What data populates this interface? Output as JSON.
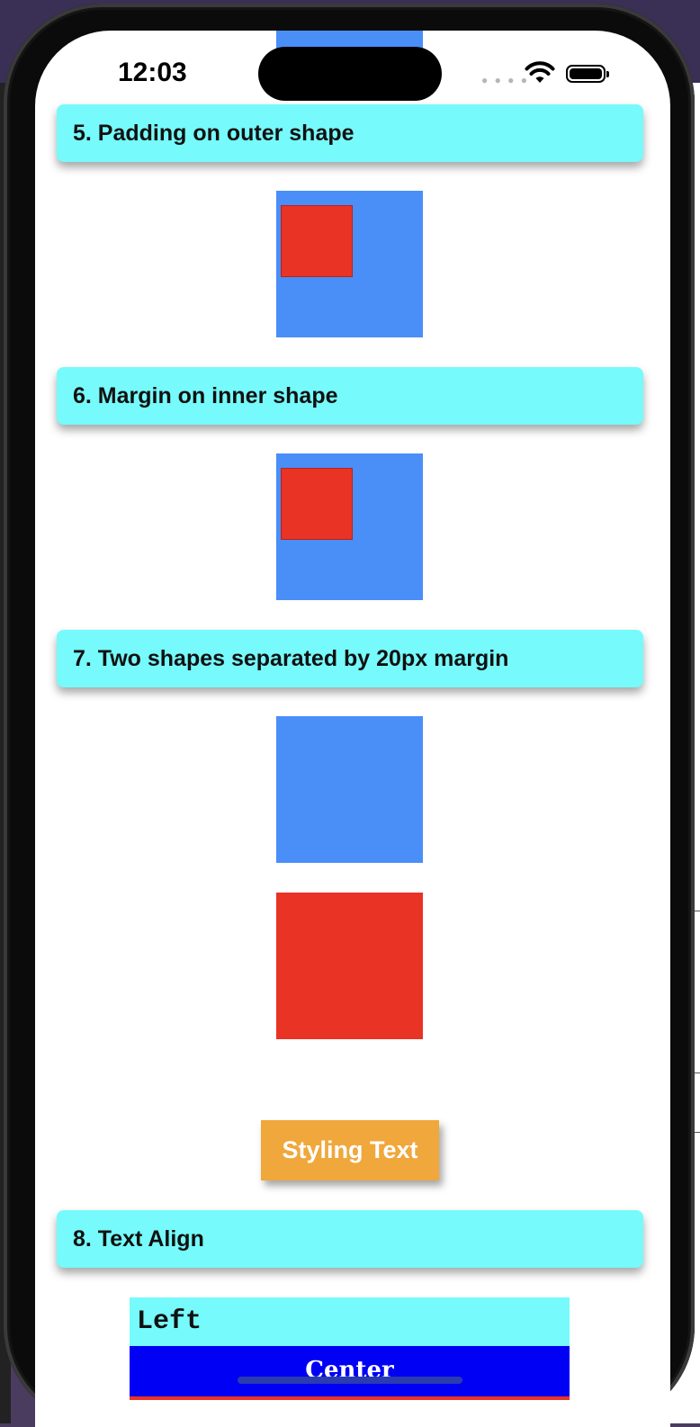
{
  "status_bar": {
    "time": "12:03",
    "signal_icon": "cellular-dots-icon",
    "wifi_icon": "wifi-icon",
    "battery_icon": "battery-icon"
  },
  "sections": [
    {
      "label": "5. Padding on outer shape"
    },
    {
      "label": "6. Margin on inner shape"
    },
    {
      "label": "7. Two shapes separated by 20px margin"
    },
    {
      "label": "8. Text Align"
    }
  ],
  "styling_button": {
    "label": "Styling Text"
  },
  "text_align": {
    "left_label": "Left",
    "center_label": "Center"
  },
  "colors": {
    "header_bg": "#76fafb",
    "blue_shape": "#4a8ef8",
    "red_shape": "#e93325",
    "button_bg": "#f0a73b",
    "center_bg": "#0000f5"
  }
}
